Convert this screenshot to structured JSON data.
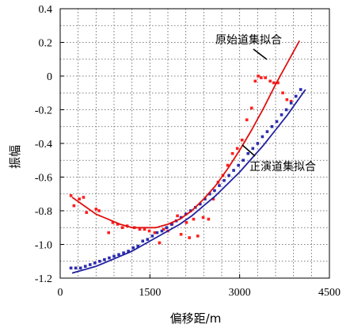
{
  "chart_data": {
    "type": "scatter",
    "xlabel": "偏移距/m",
    "ylabel": "振幅",
    "xlim": [
      0,
      4500
    ],
    "ylim": [
      -1.2,
      0.4
    ],
    "xticks": [
      0,
      1500,
      3000,
      4500
    ],
    "yticks": [
      0.4,
      0.2,
      0,
      -0.2,
      -0.4,
      -0.6,
      -0.8,
      -1.0,
      -1.2
    ],
    "xtick_labels": [
      "0",
      "1500",
      "3000",
      "4500"
    ],
    "ytick_labels": [
      "0.4",
      "0.2",
      "0",
      "-0.2",
      "-0.4",
      "-0.6",
      "-0.8",
      "-1.0",
      "-1.2"
    ],
    "grid": true,
    "annotations": [
      {
        "text": "原始道集拟合",
        "points_to_series": "original-fit"
      },
      {
        "text": "正演道集拟合",
        "points_to_series": "forward-fit"
      }
    ],
    "series": [
      {
        "key": "original-points",
        "kind": "points",
        "color": "#ff1f1f",
        "x": [
          180,
          230,
          320,
          390,
          440,
          600,
          650,
          810,
          880,
          960,
          1040,
          1120,
          1240,
          1330,
          1410,
          1490,
          1580,
          1660,
          1730,
          1800,
          1870,
          1960,
          2020,
          2110,
          2160,
          2230,
          2300,
          2390,
          2480,
          2560,
          2640,
          2720,
          2800,
          2880,
          2960,
          3040,
          3120,
          3200,
          3260,
          3310,
          3360,
          3430,
          3510,
          3570,
          3640,
          3720,
          3790,
          3860
        ],
        "y": [
          -0.71,
          -0.77,
          -0.73,
          -0.72,
          -0.81,
          -0.79,
          -0.8,
          -0.93,
          -0.87,
          -0.88,
          -0.9,
          -0.89,
          -0.9,
          -0.91,
          -0.91,
          -0.92,
          -0.93,
          -0.99,
          -0.91,
          -0.92,
          -0.88,
          -0.83,
          -0.94,
          -0.87,
          -0.96,
          -0.85,
          -0.95,
          -0.84,
          -0.85,
          -0.73,
          -0.63,
          -0.59,
          -0.53,
          -0.46,
          -0.43,
          -0.38,
          -0.26,
          -0.19,
          -0.03,
          0.0,
          -0.01,
          -0.01,
          -0.03,
          -0.04,
          -0.04,
          -0.1,
          -0.14,
          -0.15
        ]
      },
      {
        "key": "forward-points",
        "kind": "points",
        "color": "#2b2bb0",
        "x": [
          180,
          260,
          340,
          420,
          500,
          580,
          660,
          740,
          820,
          900,
          980,
          1060,
          1140,
          1220,
          1300,
          1380,
          1460,
          1540,
          1620,
          1700,
          1780,
          1860,
          1940,
          2020,
          2100,
          2180,
          2260,
          2340,
          2420,
          2500,
          2580,
          2660,
          2740,
          2820,
          2900,
          2980,
          3060,
          3140,
          3220,
          3300,
          3380,
          3460,
          3540,
          3620,
          3700,
          3780,
          3860,
          3940,
          4020
        ],
        "y": [
          -1.14,
          -1.14,
          -1.14,
          -1.13,
          -1.12,
          -1.11,
          -1.1,
          -1.09,
          -1.08,
          -1.07,
          -1.06,
          -1.05,
          -1.04,
          -1.02,
          -1.01,
          -0.98,
          -0.97,
          -0.95,
          -0.93,
          -0.92,
          -0.9,
          -0.88,
          -0.86,
          -0.84,
          -0.82,
          -0.8,
          -0.78,
          -0.76,
          -0.73,
          -0.7,
          -0.68,
          -0.65,
          -0.62,
          -0.59,
          -0.56,
          -0.53,
          -0.5,
          -0.46,
          -0.43,
          -0.4,
          -0.36,
          -0.33,
          -0.3,
          -0.27,
          -0.23,
          -0.2,
          -0.16,
          -0.12,
          -0.08
        ]
      },
      {
        "key": "original-fit",
        "kind": "line",
        "color": "#e01010",
        "x": [
          200,
          400,
          600,
          800,
          1000,
          1200,
          1400,
          1600,
          1800,
          2000,
          2200,
          2400,
          2600,
          2800,
          3000,
          3200,
          3400,
          3600,
          3800,
          4000
        ],
        "y": [
          -0.72,
          -0.77,
          -0.82,
          -0.85,
          -0.88,
          -0.9,
          -0.9,
          -0.9,
          -0.88,
          -0.85,
          -0.8,
          -0.73,
          -0.65,
          -0.55,
          -0.44,
          -0.32,
          -0.19,
          -0.05,
          0.08,
          0.21
        ]
      },
      {
        "key": "forward-fit",
        "kind": "line",
        "color": "#2020a0",
        "x": [
          200,
          400,
          600,
          800,
          1000,
          1200,
          1400,
          1600,
          1800,
          2000,
          2200,
          2400,
          2600,
          2800,
          3000,
          3200,
          3400,
          3600,
          3800,
          4000,
          4100
        ],
        "y": [
          -1.17,
          -1.15,
          -1.13,
          -1.1,
          -1.07,
          -1.04,
          -1.0,
          -0.96,
          -0.92,
          -0.88,
          -0.83,
          -0.77,
          -0.71,
          -0.64,
          -0.57,
          -0.49,
          -0.41,
          -0.32,
          -0.23,
          -0.13,
          -0.08
        ]
      }
    ]
  }
}
